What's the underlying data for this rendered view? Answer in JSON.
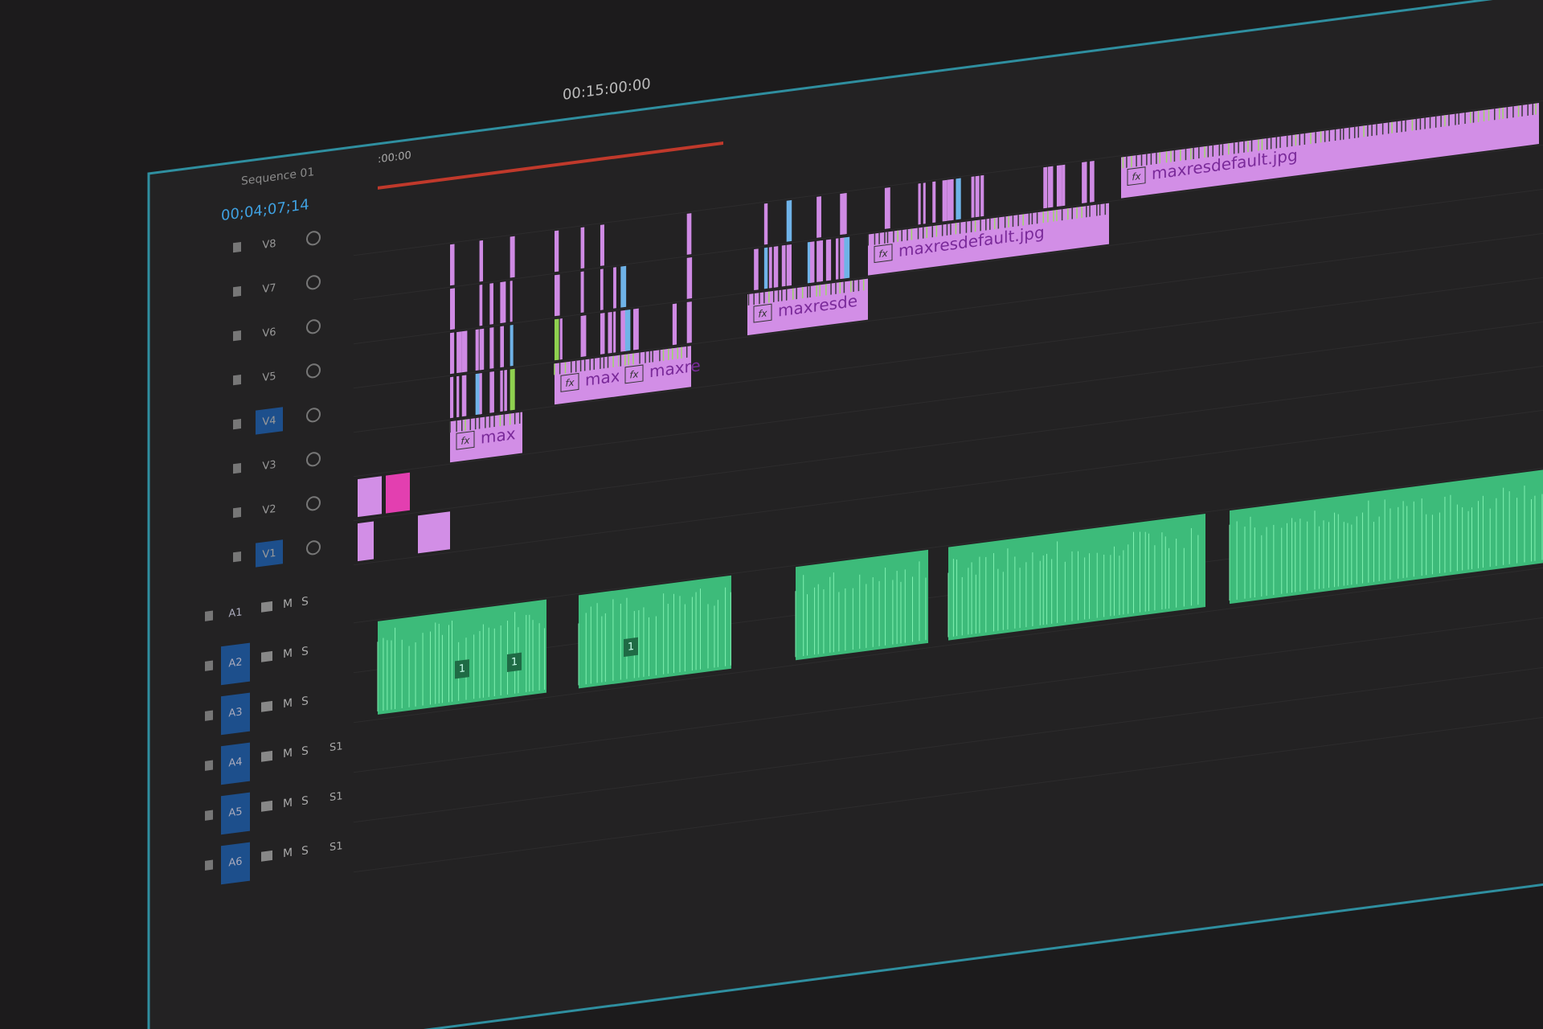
{
  "panel": {
    "title": "Sequence 01",
    "timecode": "00;04;07;14"
  },
  "ruler": {
    "start": ":00:00",
    "mark": "00:15:00:00"
  },
  "video_tracks": [
    "V8",
    "V7",
    "V6",
    "V5",
    "V4",
    "V3",
    "V2",
    "V1"
  ],
  "audio_tracks": [
    {
      "name": "A1",
      "mute": "M",
      "solo": "S"
    },
    {
      "name": "A2",
      "mute": "M",
      "solo": "S"
    },
    {
      "name": "A3",
      "mute": "M",
      "solo": "S"
    },
    {
      "name": "A4",
      "mute": "M",
      "solo": "S",
      "extra": "S1"
    },
    {
      "name": "A5",
      "mute": "M",
      "solo": "S",
      "extra": "S1"
    },
    {
      "name": "A6",
      "mute": "M",
      "solo": "S",
      "extra": "S1"
    }
  ],
  "clips": [
    {
      "fx": "fx",
      "label": "max"
    },
    {
      "fx": "fx",
      "label": "maxre"
    },
    {
      "fx": "fx",
      "label": "maxre"
    },
    {
      "fx": "fx",
      "label": "maxresde"
    },
    {
      "fx": "fx",
      "label": "maxresdefault.jpg"
    },
    {
      "fx": "fx",
      "label": "maxresdefault.jpg"
    }
  ],
  "audio_clips": [
    {
      "label": "1"
    },
    {
      "label": "1"
    },
    {
      "label": "1"
    }
  ]
}
